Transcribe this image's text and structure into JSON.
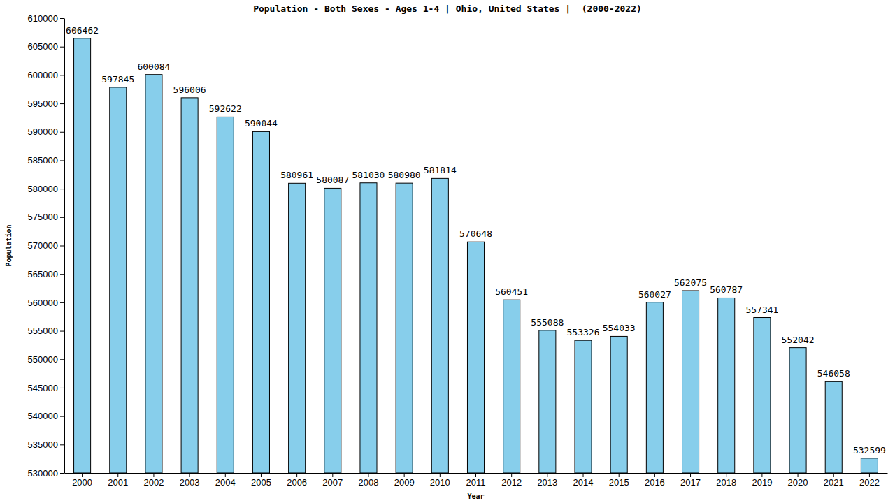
{
  "chart_data": {
    "type": "bar",
    "title": "Population - Both Sexes - Ages 1-4 | Ohio, United States |  (2000-2022)",
    "x_label": "Year",
    "y_label": "Population",
    "categories": [
      "2000",
      "2001",
      "2002",
      "2003",
      "2004",
      "2005",
      "2006",
      "2007",
      "2008",
      "2009",
      "2010",
      "2011",
      "2012",
      "2013",
      "2014",
      "2015",
      "2016",
      "2017",
      "2018",
      "2019",
      "2020",
      "2021",
      "2022"
    ],
    "values": [
      606462,
      597845,
      600084,
      596006,
      592622,
      590044,
      580961,
      580087,
      581030,
      580980,
      581814,
      570648,
      560451,
      555088,
      553326,
      554033,
      560027,
      562075,
      560787,
      557341,
      552042,
      546058,
      532599
    ],
    "color": "#87ceeb",
    "ylim": [
      530000,
      610000
    ],
    "yticks": [
      530000,
      535000,
      540000,
      545000,
      550000,
      555000,
      560000,
      565000,
      570000,
      575000,
      580000,
      585000,
      590000,
      595000,
      600000,
      605000,
      610000
    ],
    "grid": false,
    "data_labels": true
  }
}
